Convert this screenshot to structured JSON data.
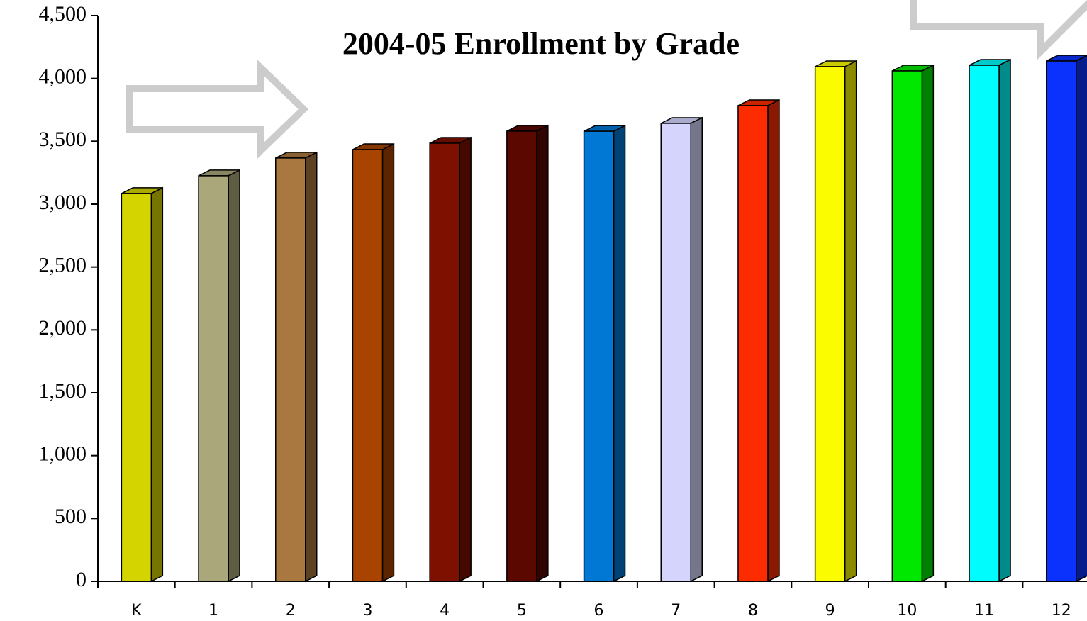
{
  "chart_data": {
    "type": "bar3d",
    "title": "2004-05 Enrollment by Grade",
    "categories": [
      "K",
      "1",
      "2",
      "3",
      "4",
      "5",
      "6",
      "7",
      "8",
      "9",
      "10",
      "11",
      "12"
    ],
    "values": [
      3085,
      3226,
      3367,
      3434,
      3485,
      3581,
      3580,
      3643,
      3784,
      4094,
      4060,
      4105,
      4139
    ],
    "colors": [
      "#d4d400",
      "#aaa77a",
      "#a87840",
      "#a84400",
      "#7e1000",
      "#5a0800",
      "#0078d4",
      "#d4d4fc",
      "#fc2c00",
      "#fcfc00",
      "#00e800",
      "#00fcfc",
      "#0a32fc"
    ],
    "ylim": [
      0,
      4500
    ],
    "yticks": [
      0,
      500,
      {
        "value": 1000,
        "label": "1,000"
      },
      {
        "value": 1500,
        "label": "1,500"
      },
      {
        "value": 2000,
        "label": "2,000"
      },
      {
        "value": 2500,
        "label": "2,500"
      },
      {
        "value": 3000,
        "label": "3,000"
      },
      {
        "value": 3500,
        "label": "3,500"
      },
      {
        "value": 4000,
        "label": "4,000"
      },
      {
        "value": 4500,
        "label": "4,500"
      }
    ],
    "grid": false
  }
}
